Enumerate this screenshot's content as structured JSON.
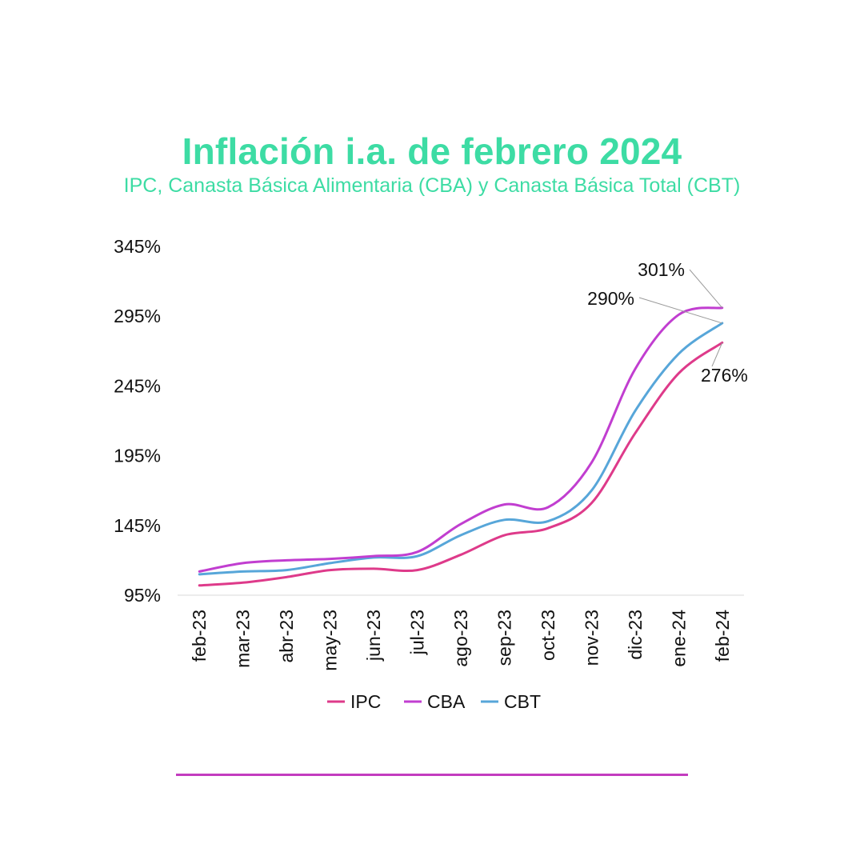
{
  "header": {
    "title": "Inflación i.a. de febrero 2024",
    "subtitle": "IPC, Canasta Básica Alimentaria (CBA) y Canasta Básica Total (CBT)"
  },
  "colors": {
    "title": "#3ddca4",
    "IPC": "#de3a8a",
    "CBA": "#c13ed0",
    "CBT": "#57a6d9",
    "footer_line": "#c33cbf"
  },
  "chart_data": {
    "type": "line",
    "title": "Inflación i.a. de febrero 2024",
    "subtitle": "IPC, Canasta Básica Alimentaria (CBA) y Canasta Básica Total (CBT)",
    "xlabel": "",
    "ylabel": "",
    "ylim": [
      95,
      345
    ],
    "yticks": [
      95,
      145,
      195,
      245,
      295,
      345
    ],
    "ytick_labels": [
      "95%",
      "145%",
      "195%",
      "245%",
      "295%",
      "345%"
    ],
    "categories": [
      "feb-23",
      "mar-23",
      "abr-23",
      "may-23",
      "jun-23",
      "jul-23",
      "ago-23",
      "sep-23",
      "oct-23",
      "nov-23",
      "dic-23",
      "ene-24",
      "feb-24"
    ],
    "grid": false,
    "legend_position": "bottom",
    "series": [
      {
        "name": "IPC",
        "values": [
          102,
          104,
          108,
          113,
          114,
          113,
          124,
          138,
          143,
          161,
          211,
          254,
          276
        ]
      },
      {
        "name": "CBA",
        "values": [
          112,
          118,
          120,
          121,
          123,
          126,
          146,
          160,
          158,
          190,
          257,
          296,
          301
        ]
      },
      {
        "name": "CBT",
        "values": [
          110,
          112,
          113,
          118,
          122,
          123,
          138,
          149,
          148,
          170,
          227,
          268,
          290
        ]
      }
    ],
    "annotations": [
      {
        "series": "CBA",
        "text": "301%"
      },
      {
        "series": "CBT",
        "text": "290%"
      },
      {
        "series": "IPC",
        "text": "276%"
      }
    ]
  }
}
